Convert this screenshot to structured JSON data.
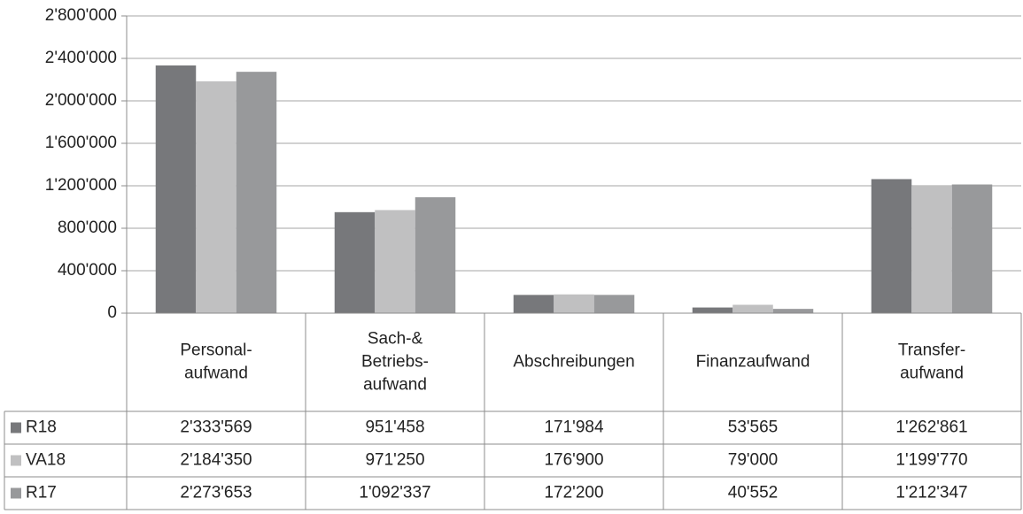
{
  "chart_data": {
    "type": "bar",
    "categories": [
      [
        "Personal-",
        "aufwand"
      ],
      [
        "Sach-&",
        "Betriebs-",
        "aufwand"
      ],
      [
        "Abschreibungen"
      ],
      [
        "Finanzaufwand"
      ],
      [
        "Transfer-",
        "aufwand"
      ]
    ],
    "series": [
      {
        "name": "R18",
        "color": "#77787b",
        "values": [
          2333569,
          951458,
          171984,
          53565,
          1262861
        ],
        "value_labels": [
          "2'333'569",
          "951'458",
          "171'984",
          "53'565",
          "1'262'861"
        ]
      },
      {
        "name": "VA18",
        "color": "#c0c0c1",
        "values": [
          2184350,
          971250,
          176900,
          79000,
          1199770
        ],
        "value_labels": [
          "2'184'350",
          "971'250",
          "176'900",
          "79'000",
          "1'199'770"
        ]
      },
      {
        "name": "R17",
        "color": "#98999b",
        "values": [
          2273653,
          1092337,
          172200,
          40552,
          1212347
        ],
        "value_labels": [
          "2'273'653",
          "1'092'337",
          "172'200",
          "40'552",
          "1'212'347"
        ]
      }
    ],
    "ylim": [
      0,
      2800000
    ],
    "yticks": [
      0,
      {
        "value": 400000,
        "label": "400'000"
      },
      {
        "value": 800000,
        "label": "800'000"
      },
      {
        "value": 1200000,
        "label": "1'200'000"
      },
      {
        "value": 1600000,
        "label": "1'600'000"
      },
      {
        "value": 2000000,
        "label": "2'000'000"
      },
      {
        "value": 2400000,
        "label": "2'400'000"
      },
      {
        "value": 2800000,
        "label": "2'800'000"
      }
    ],
    "grid": true
  }
}
